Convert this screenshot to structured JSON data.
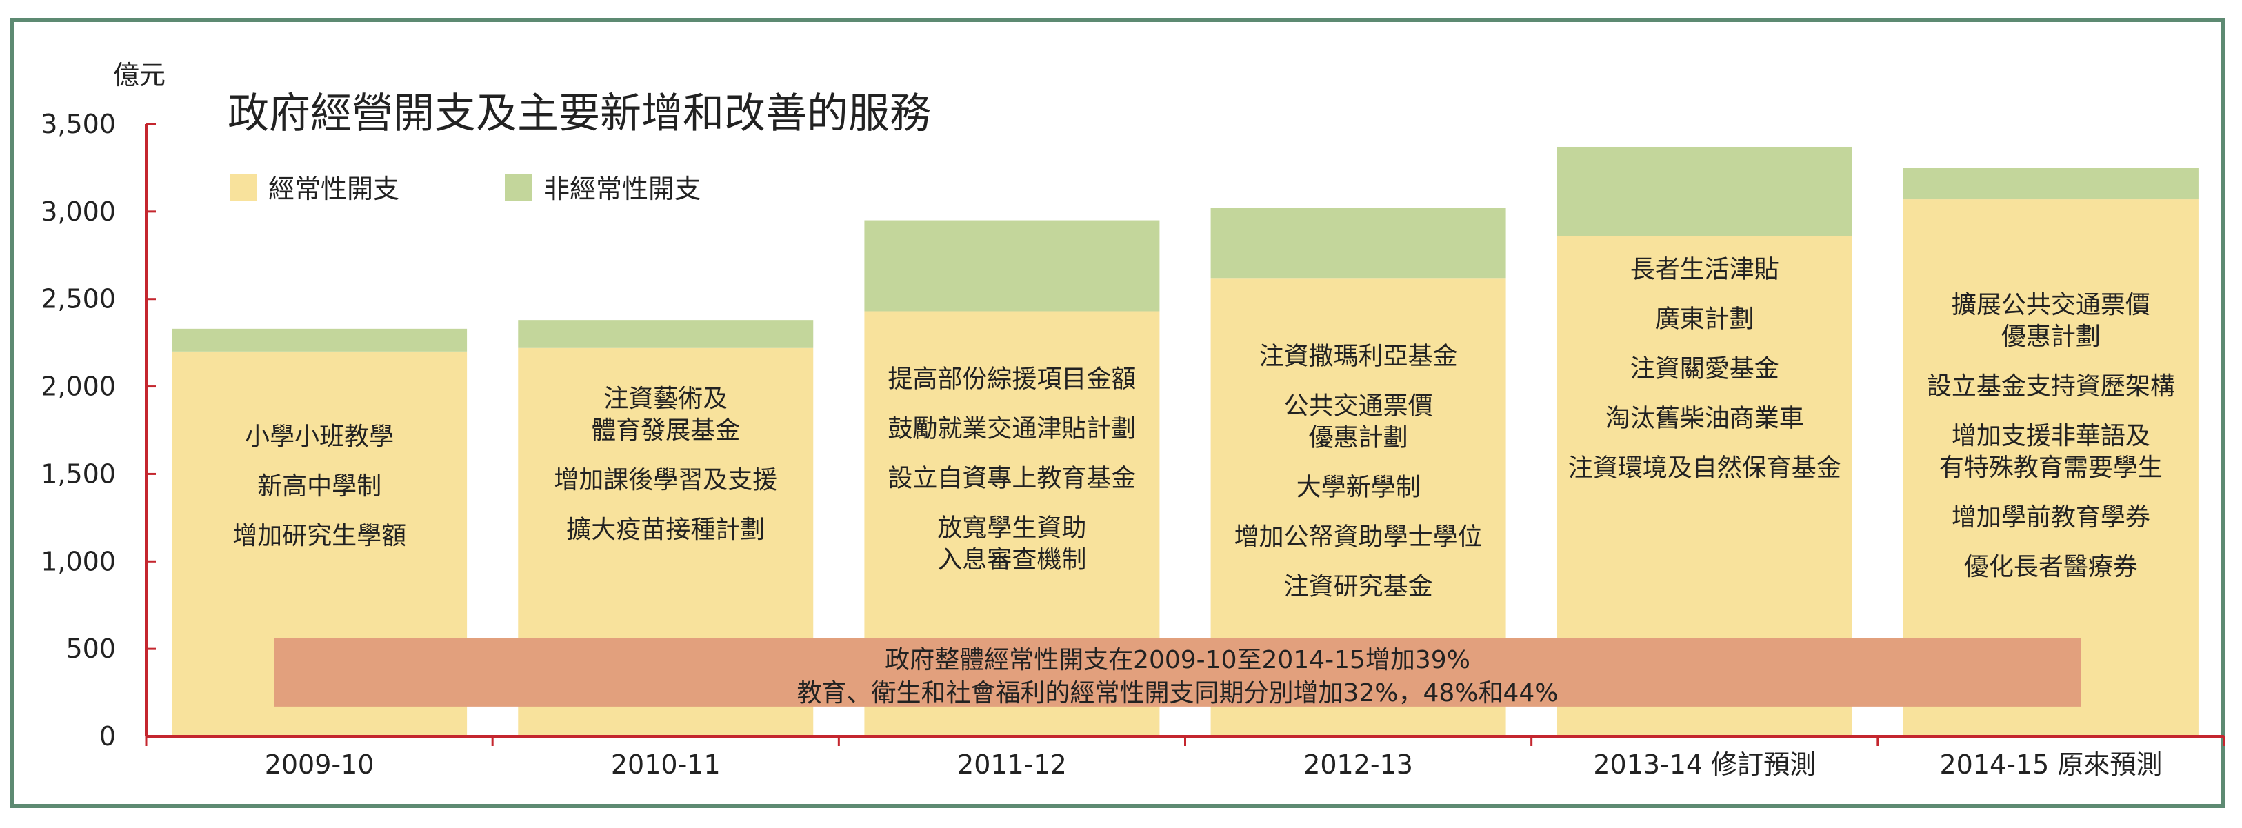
{
  "chart_data": {
    "type": "bar",
    "title": "政府經營開支及主要新增和改善的服務",
    "ylabel": "億元",
    "ylim": [
      0,
      3500
    ],
    "yticks": [
      0,
      500,
      1000,
      1500,
      2000,
      2500,
      3000,
      3500
    ],
    "ytick_labels": [
      "0",
      "500",
      "1,000",
      "1,500",
      "2,000",
      "2,500",
      "3,000",
      "3,500"
    ],
    "grid": false,
    "legend_position": "top-left",
    "categories": [
      "2009-10",
      "2010-11",
      "2011-12",
      "2012-13",
      "2013-14 修訂預測",
      "2014-15 原來預測"
    ],
    "series": [
      {
        "name": "經常性開支",
        "color": "#f8e29c",
        "values": [
          2200,
          2220,
          2430,
          2620,
          2860,
          3070
        ]
      },
      {
        "name": "非經常性開支",
        "color": "#c3d69b",
        "values": [
          130,
          160,
          520,
          400,
          510,
          180
        ]
      }
    ],
    "bar_annotations": [
      [
        "小學小班教學",
        "新高中學制",
        "增加研究生學額"
      ],
      [
        "注資藝術及\n體育發展基金",
        "增加課後學習及支援",
        "擴大疫苗接種計劃"
      ],
      [
        "提高部份綜援項目金額",
        "鼓勵就業交通津貼計劃",
        "設立自資專上教育基金",
        "放寬學生資助\n入息審查機制"
      ],
      [
        "注資撒瑪利亞基金",
        "公共交通票價\n優惠計劃",
        "大學新學制",
        "增加公帑資助學士學位",
        "注資研究基金"
      ],
      [
        "長者生活津貼",
        "廣東計劃",
        "注資關愛基金",
        "淘汰舊柴油商業車",
        "注資環境及自然保育基金"
      ],
      [
        "擴展公共交通票價\n優惠計劃",
        "設立基金支持資歷架構",
        "增加支援非華語及\n有特殊教育需要學生",
        "增加學前教育學券",
        "優化長者醫療券"
      ]
    ],
    "banner": {
      "lines": [
        "政府整體經常性開支在2009-10至2014-15增加39%",
        "教育、衛生和社會福利的經常性開支同期分別增加32%，48%和44%"
      ],
      "color": "#e2a07d",
      "y_range": [
        170,
        560
      ]
    }
  }
}
